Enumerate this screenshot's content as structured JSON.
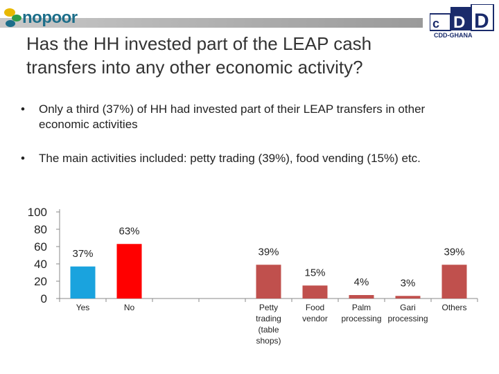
{
  "header": {
    "logo_left_text": "nopoor",
    "logo_right_text": "CDD-GHANA",
    "logo_right_letters": "cDD"
  },
  "title": {
    "line1": "Has the HH invested part of the LEAP cash",
    "line2": "transfers into any other economic activity?"
  },
  "bullets": [
    {
      "marker": "•",
      "text": "Only a third (37%) of HH had invested part of their LEAP transfers in other economic activities"
    },
    {
      "marker": "•",
      "text": "The main activities included: petty trading (39%), food vending (15%) etc."
    }
  ],
  "colors": {
    "yes": "#1aa3de",
    "no": "#ff0000",
    "activity": "#c0504d",
    "axis": "#888888"
  },
  "chart_data": {
    "type": "bar",
    "ylim": [
      0,
      100
    ],
    "yticks": [
      0,
      20,
      40,
      60,
      80,
      100
    ],
    "categories": [
      {
        "label": [
          "Yes"
        ],
        "value": 37,
        "data_label": "37%",
        "color": "yes"
      },
      {
        "label": [
          "No"
        ],
        "value": 63,
        "data_label": "63%",
        "color": "no"
      },
      {
        "label": [
          ""
        ],
        "value": null,
        "data_label": "",
        "color": "activity"
      },
      {
        "label": [
          ""
        ],
        "value": null,
        "data_label": "",
        "color": "activity"
      },
      {
        "label": [
          "Petty",
          "trading",
          "(table",
          "shops)"
        ],
        "value": 39,
        "data_label": "39%",
        "color": "activity"
      },
      {
        "label": [
          "Food",
          "vendor"
        ],
        "value": 15,
        "data_label": "15%",
        "color": "activity"
      },
      {
        "label": [
          "Palm",
          "processing"
        ],
        "value": 4,
        "data_label": "4%",
        "color": "activity"
      },
      {
        "label": [
          "Gari",
          "processing"
        ],
        "value": 3,
        "data_label": "3%",
        "color": "activity"
      },
      {
        "label": [
          "Others"
        ],
        "value": 39,
        "data_label": "39%",
        "color": "activity"
      }
    ]
  }
}
